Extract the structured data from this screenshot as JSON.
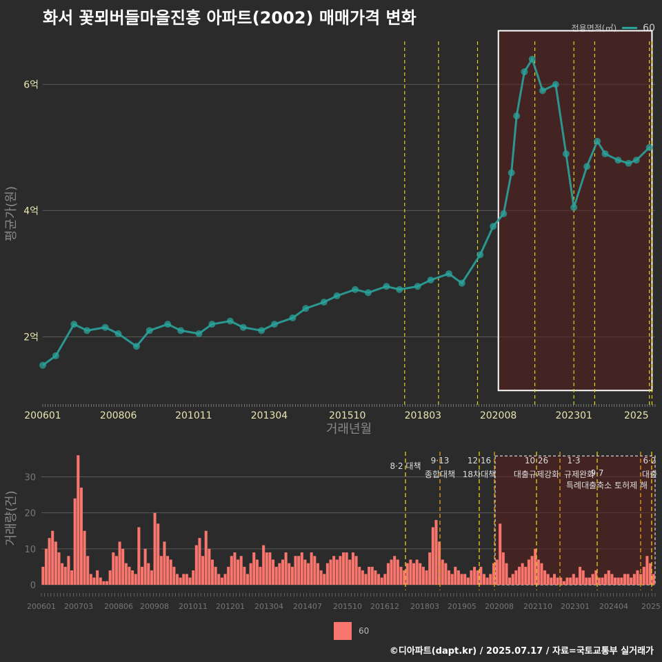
{
  "title": "화서 꽃뫼버들마을진흥 아파트(2002) 매매가격 변화",
  "legend_top": {
    "label": "전용면적(㎡)",
    "series": "60"
  },
  "legend_bottom": {
    "series": "60"
  },
  "credit": "©디아파트(dapt.kr) / 2025.07.17 / 자료=국토교통부 실거래가",
  "colors": {
    "price_line": "#2aa39b",
    "volume_bar": "#f8766d",
    "policy_line": "#e6d21a",
    "highlight": "#5a1e1e"
  },
  "chart_data": [
    {
      "type": "line",
      "name": "price",
      "xlabel": "거래년월",
      "ylabel": "평균가(원)",
      "x_ticks": [
        "200601",
        "200806",
        "201011",
        "201304",
        "201510",
        "201803",
        "202008",
        "202301",
        "2025"
      ],
      "y_ticks": [
        "2억",
        "4억",
        "6억"
      ],
      "ylim": [
        1.0,
        6.9
      ],
      "y_unit": "억",
      "highlight_range": [
        "2020-08",
        "2025-07"
      ],
      "policy_dates": [
        "2017-08",
        "2018-09",
        "2019-12",
        "2021-10",
        "2023-01",
        "2023-09",
        "2025-06",
        "2025-07"
      ],
      "series": [
        {
          "name": "60",
          "x": [
            "2006-01",
            "2006-06",
            "2007-01",
            "2007-06",
            "2008-01",
            "2008-06",
            "2009-01",
            "2009-06",
            "2010-01",
            "2010-06",
            "2011-01",
            "2011-06",
            "2012-01",
            "2012-06",
            "2013-01",
            "2013-06",
            "2014-01",
            "2014-06",
            "2015-01",
            "2015-06",
            "2016-01",
            "2016-06",
            "2017-01",
            "2017-06",
            "2018-01",
            "2018-06",
            "2019-01",
            "2019-06",
            "2020-01",
            "2020-06",
            "2020-10",
            "2021-01",
            "2021-03",
            "2021-06",
            "2021-09",
            "2022-01",
            "2022-06",
            "2022-10",
            "2023-01",
            "2023-06",
            "2023-10",
            "2024-01",
            "2024-06",
            "2024-10",
            "2025-01",
            "2025-06"
          ],
          "values": [
            1.55,
            1.7,
            2.2,
            2.1,
            2.15,
            2.05,
            1.85,
            2.1,
            2.2,
            2.1,
            2.05,
            2.2,
            2.25,
            2.15,
            2.1,
            2.2,
            2.3,
            2.45,
            2.55,
            2.65,
            2.75,
            2.7,
            2.8,
            2.75,
            2.8,
            2.9,
            3.0,
            2.85,
            3.3,
            3.75,
            3.95,
            4.6,
            5.5,
            6.2,
            6.4,
            5.9,
            6.0,
            4.9,
            4.05,
            4.7,
            5.1,
            4.9,
            4.8,
            4.75,
            4.8,
            5.0
          ]
        }
      ]
    },
    {
      "type": "bar",
      "name": "volume",
      "ylabel": "거래량(건)",
      "x_ticks": [
        "200601",
        "200703",
        "200806",
        "200908",
        "201011",
        "201201",
        "201304",
        "201407",
        "201510",
        "201612",
        "201803",
        "201905",
        "202008",
        "202110",
        "202301",
        "202404",
        "2025"
      ],
      "y_ticks": [
        "0",
        "10",
        "20",
        "30"
      ],
      "ylim": [
        0,
        37
      ],
      "series": [
        {
          "name": "60",
          "values": [
            5,
            10,
            13,
            15,
            12,
            9,
            6,
            5,
            8,
            4,
            24,
            36,
            27,
            15,
            8,
            3,
            2,
            4,
            2,
            1,
            1,
            4,
            9,
            8,
            12,
            10,
            6,
            5,
            4,
            3,
            16,
            5,
            10,
            6,
            4,
            20,
            17,
            8,
            12,
            8,
            7,
            5,
            3,
            2,
            3,
            3,
            2,
            4,
            11,
            13,
            8,
            15,
            10,
            7,
            5,
            3,
            2,
            3,
            5,
            8,
            9,
            7,
            8,
            5,
            3,
            6,
            9,
            7,
            5,
            11,
            9,
            9,
            7,
            5,
            6,
            7,
            9,
            6,
            5,
            8,
            8,
            9,
            7,
            6,
            9,
            8,
            6,
            4,
            3,
            6,
            7,
            8,
            7,
            8,
            9,
            9,
            7,
            9,
            8,
            5,
            4,
            3,
            5,
            5,
            4,
            3,
            2,
            3,
            6,
            7,
            8,
            7,
            5,
            4,
            6,
            7,
            6,
            7,
            6,
            5,
            4,
            9,
            16,
            18,
            12,
            7,
            6,
            4,
            3,
            5,
            4,
            3,
            3,
            2,
            4,
            5,
            4,
            5,
            3,
            2,
            3,
            6,
            7,
            17,
            9,
            6,
            2,
            3,
            4,
            5,
            6,
            5,
            7,
            8,
            10,
            7,
            6,
            4,
            3,
            2,
            3,
            2,
            2,
            1,
            2,
            2,
            3,
            2,
            5,
            4,
            2,
            2,
            3,
            4,
            2,
            2,
            3,
            4,
            3,
            2,
            2,
            2,
            3,
            3,
            2,
            3,
            4,
            3,
            5,
            8,
            6,
            3
          ]
        }
      ],
      "annotations": [
        "8·2 대책",
        "9·13 종합대책",
        "12·16 18차대책",
        "10·26 대출규제강화",
        "1·3 규제완화",
        "9·7 특례대출축소",
        "토허제 해",
        "6·2 대출"
      ]
    }
  ]
}
